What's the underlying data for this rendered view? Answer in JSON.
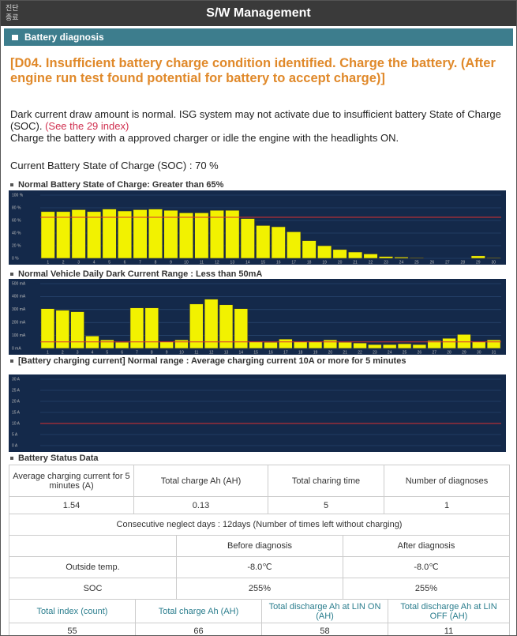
{
  "header": {
    "close_label": "진단 종료",
    "title": "S/W Management"
  },
  "section": "Battery diagnosis",
  "headline": "[D04. Insufficient battery charge condition identified. Charge the battery. (After engine run test found potential for battery to accept charge)]",
  "description": {
    "text1": "Dark current draw amount is normal. ISG system may not activate due to insufficient battery State of Charge (SOC). ",
    "link": "(See the 29 index)",
    "text2": "Charge the battery with a approved charger or idle the engine with the headlights ON."
  },
  "soc_line": "Current Battery State of Charge (SOC) : 70 %",
  "chart_data": [
    {
      "type": "bar",
      "title": "Normal Battery State of Charge: Greater than 65%",
      "categories": [
        "1",
        "2",
        "3",
        "4",
        "5",
        "6",
        "7",
        "8",
        "9",
        "10",
        "11",
        "12",
        "13",
        "14",
        "15",
        "16",
        "17",
        "18",
        "19",
        "20",
        "21",
        "22",
        "23",
        "24",
        "25",
        "26",
        "27",
        "28",
        "29",
        "30"
      ],
      "values": [
        74,
        74,
        77,
        74,
        78,
        75,
        77,
        78,
        76,
        72,
        72,
        76,
        76,
        63,
        52,
        50,
        42,
        28,
        20,
        14,
        10,
        7,
        3,
        2,
        1,
        0,
        0,
        0,
        4,
        1
      ],
      "color": "#f2f200",
      "threshold": 65,
      "threshold_color": "#d83030",
      "ylim": [
        0,
        100
      ],
      "yticks": [
        {
          "value": 0,
          "label": "0 %"
        },
        {
          "value": 20,
          "label": "20 %"
        },
        {
          "value": 40,
          "label": "40 %"
        },
        {
          "value": 60,
          "label": "60 %"
        },
        {
          "value": 80,
          "label": "80 %"
        },
        {
          "value": 100,
          "label": "100 %"
        }
      ]
    },
    {
      "type": "bar",
      "title": "Normal Vehicle Daily Dark Current Range : Less than 50mA",
      "categories": [
        "1",
        "2",
        "3",
        "4",
        "5",
        "6",
        "7",
        "8",
        "9",
        "10",
        "11",
        "12",
        "13",
        "14",
        "15",
        "16",
        "17",
        "18",
        "19",
        "20",
        "21",
        "22",
        "23",
        "24",
        "25",
        "26",
        "27",
        "28",
        "29",
        "30",
        "31"
      ],
      "values": [
        307,
        295,
        283,
        96,
        66,
        48,
        313,
        313,
        54,
        66,
        343,
        380,
        337,
        307,
        54,
        48,
        72,
        54,
        54,
        66,
        48,
        42,
        30,
        30,
        36,
        30,
        60,
        78,
        108,
        54,
        66
      ],
      "color": "#f2f200",
      "threshold": 50,
      "threshold_color": "#d83030",
      "ylim": [
        0,
        500
      ],
      "yticks": [
        {
          "value": 0,
          "label": "0 mA"
        },
        {
          "value": 100,
          "label": "100 mA"
        },
        {
          "value": 200,
          "label": "200 mA"
        },
        {
          "value": 300,
          "label": "300 mA"
        },
        {
          "value": 400,
          "label": "400 mA"
        },
        {
          "value": 500,
          "label": "500 mA"
        }
      ]
    },
    {
      "type": "bar",
      "title": "[Battery charging current] Normal range : Average charging current 10A or more for 5 minutes",
      "categories": [],
      "values": [],
      "color": "#f2f200",
      "threshold": 10,
      "threshold_color": "#d83030",
      "ylim": [
        0,
        30
      ],
      "yticks": [
        {
          "value": 0,
          "label": "0 A"
        },
        {
          "value": 5,
          "label": "5 A"
        },
        {
          "value": 10,
          "label": "10 A"
        },
        {
          "value": 15,
          "label": "15 A"
        },
        {
          "value": 20,
          "label": "20 A"
        },
        {
          "value": 25,
          "label": "25 A"
        },
        {
          "value": 30,
          "label": "30 A"
        }
      ]
    }
  ],
  "status": {
    "title": "Battery Status Data",
    "table1": {
      "headers": [
        "Average charging current for 5 minutes (A)",
        "Total charge Ah (AH)",
        "Total charing time",
        "Number of diagnoses"
      ],
      "row": [
        "1.54",
        "0.13",
        "5",
        "1"
      ]
    },
    "neglect": "Consecutive neglect days : 12days (Number of times left without charging)",
    "table2": {
      "headers": [
        "Before diagnosis",
        "After diagnosis"
      ],
      "rows": [
        [
          "Outside temp.",
          "-8.0℃",
          "-8.0℃"
        ],
        [
          "SOC",
          "255%",
          "255%"
        ]
      ]
    },
    "table3": {
      "headers": [
        "Total index (count)",
        "Total charge Ah (AH)",
        "Total discharge Ah at LIN ON (AH)",
        "Total discharge Ah at LIN OFF (AH)"
      ],
      "row": [
        "55",
        "66",
        "58",
        "11"
      ]
    }
  }
}
